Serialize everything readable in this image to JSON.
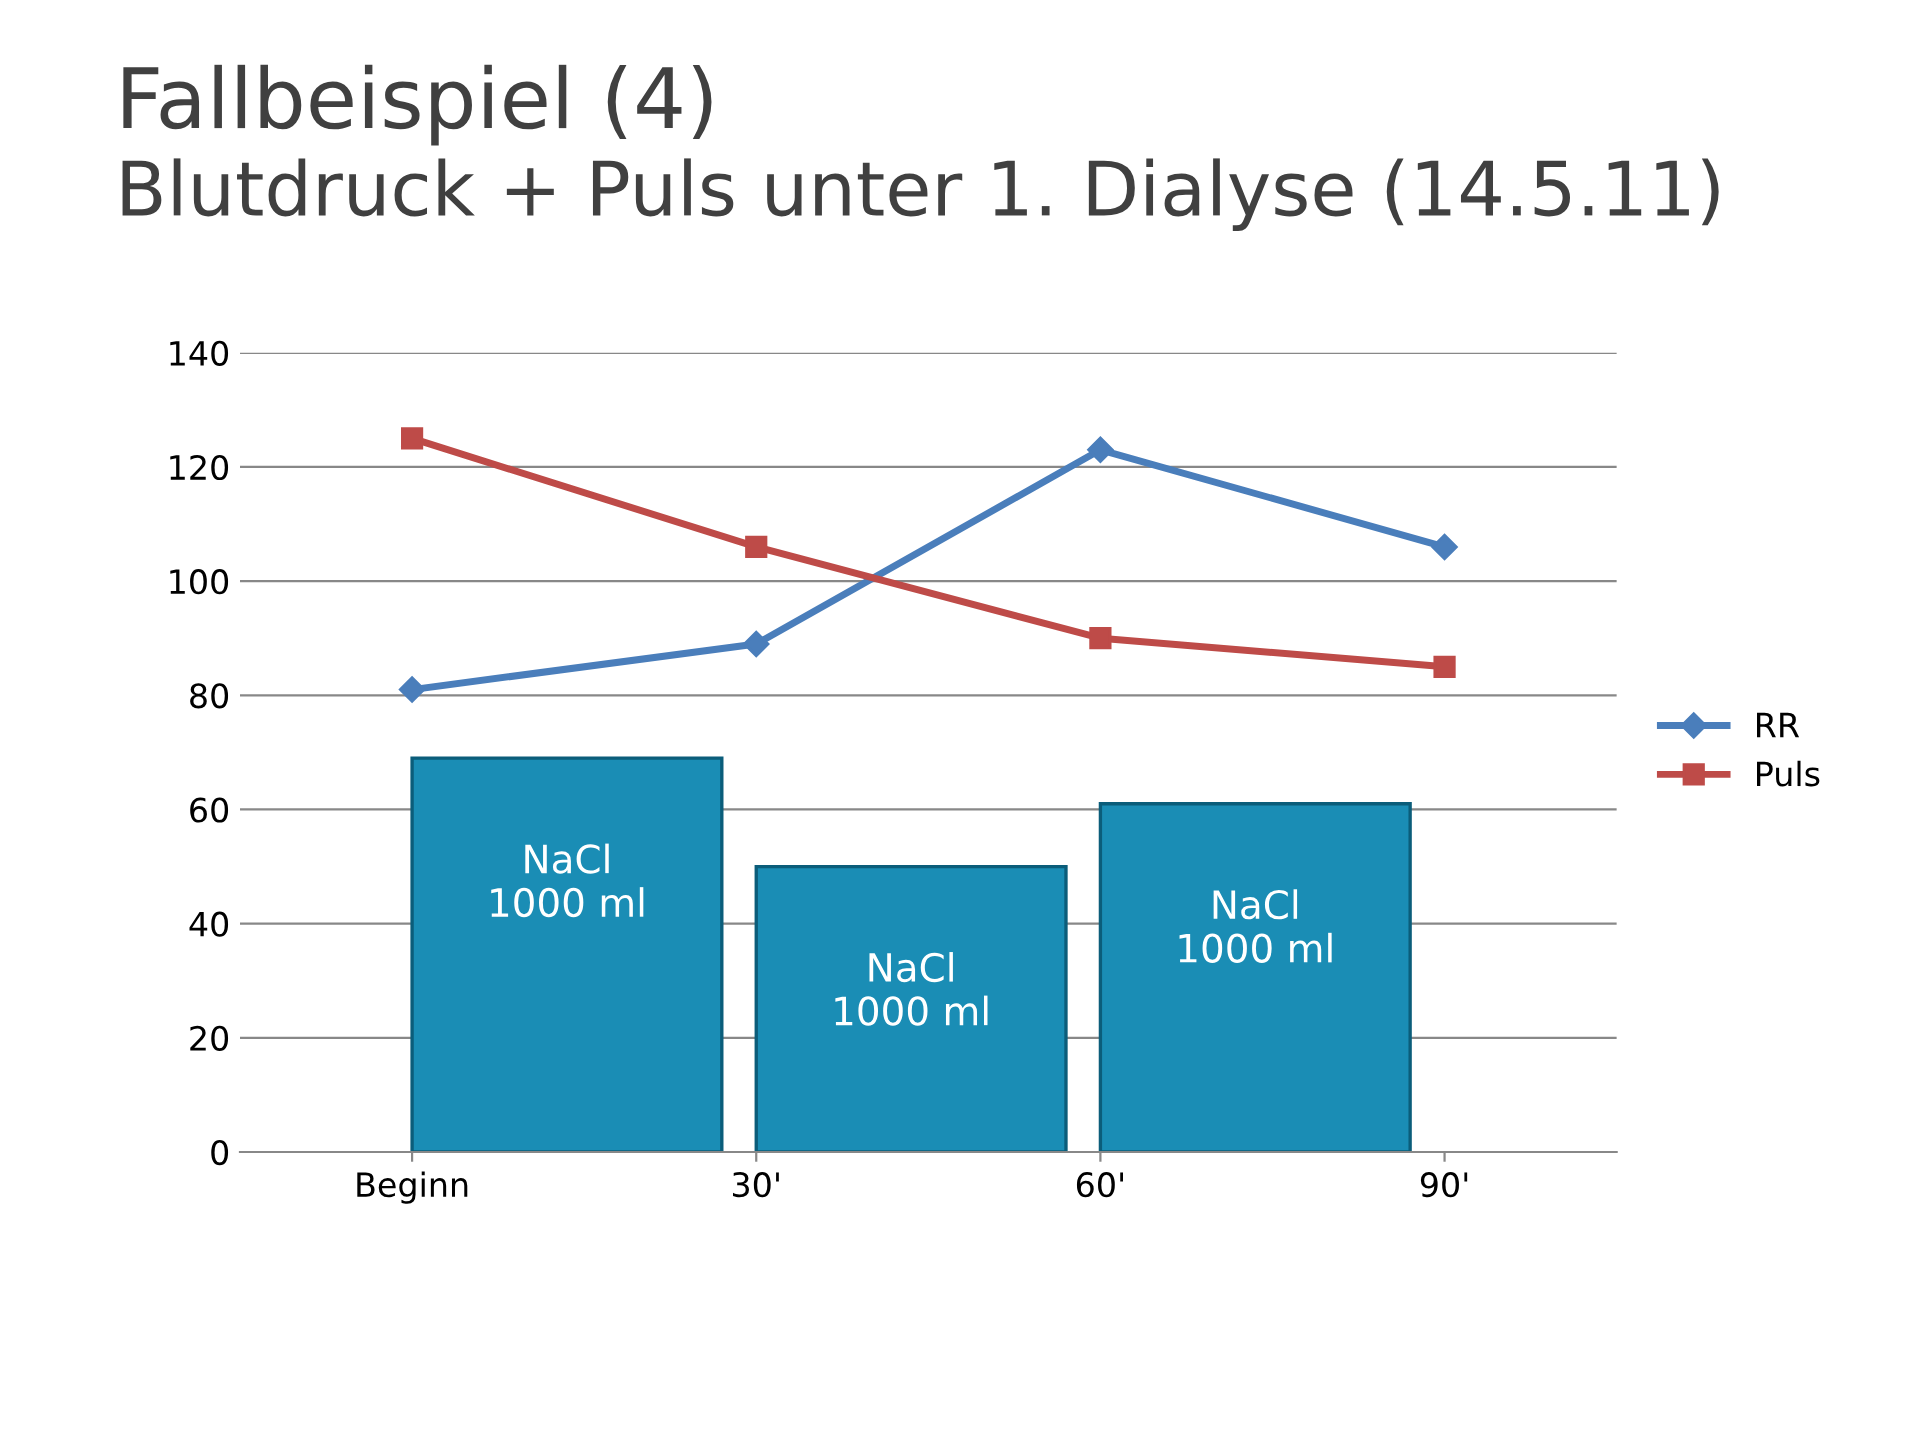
{
  "chart_data": {
    "type": "line",
    "title": "Fallbeispiel (4)",
    "subtitle": "Blutdruck + Puls unter 1. Dialyse (14.5.11)",
    "categories": [
      "Beginn",
      "30'",
      "60'",
      "90'"
    ],
    "series": [
      {
        "type": "bar",
        "color": "#1a8db5",
        "values": [
          69,
          50,
          61,
          null
        ],
        "value_labels": [
          "NaCl\n1000 ml",
          "NaCl\n1000 ml",
          "NaCl\n1000 ml",
          null
        ]
      },
      {
        "name": "RR",
        "color": "#4a7ebb",
        "marker": "diamond",
        "values": [
          81,
          89,
          123,
          106
        ]
      },
      {
        "name": "Puls",
        "color": "#be4b48",
        "marker": "square",
        "values": [
          125,
          106,
          90,
          85
        ]
      }
    ],
    "ylim": [
      0,
      140
    ],
    "yticks": [
      0,
      20,
      40,
      60,
      80,
      100,
      120,
      140
    ],
    "grid": "y",
    "legend": "right"
  }
}
